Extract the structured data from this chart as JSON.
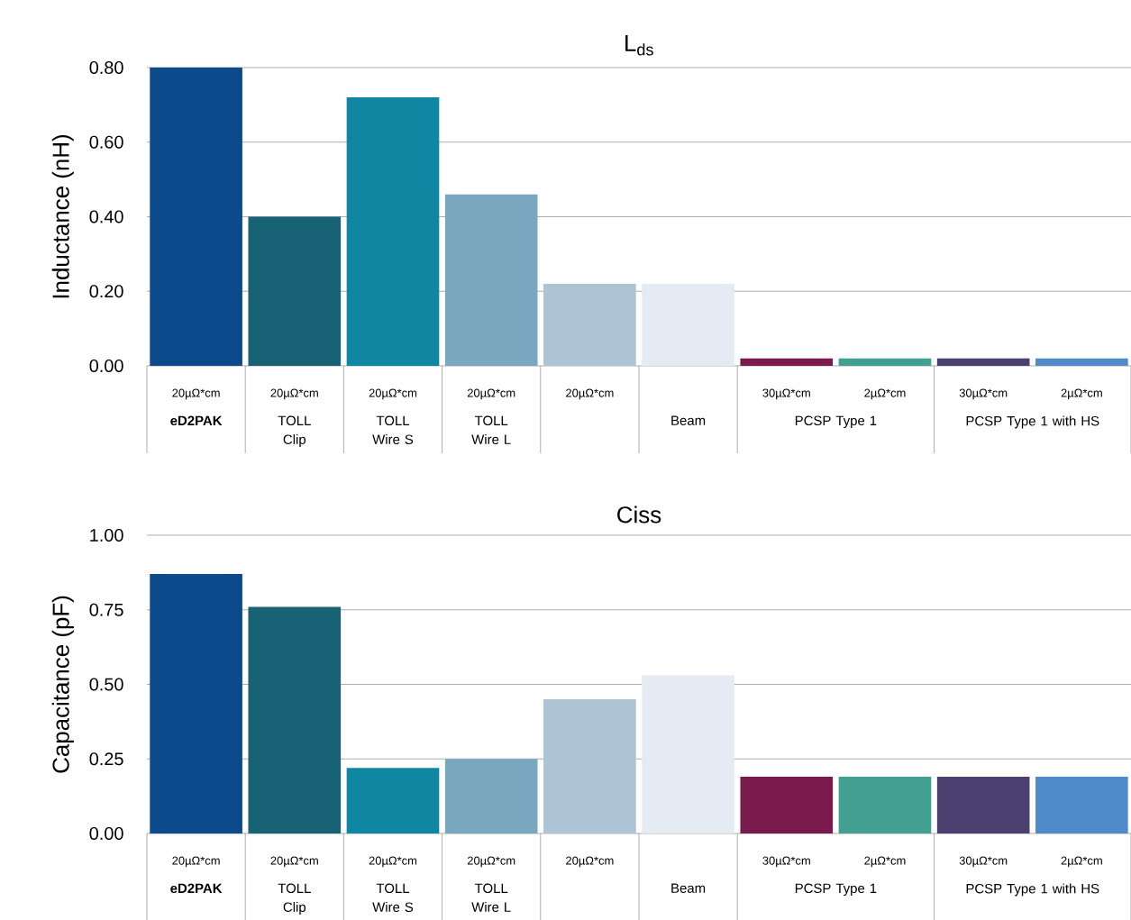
{
  "chart_data": [
    {
      "type": "bar",
      "title": "L$_{ds}$",
      "ylabel": "Inductance (nH)",
      "categories": [
        "20µΩ*cm",
        "20µΩ*cm",
        "20µΩ*cm",
        "20µΩ*cm",
        "20µΩ*cm",
        null,
        "30µΩ*cm",
        "2µΩ*cm",
        "30µΩ*cm",
        "2µΩ*cm"
      ],
      "values": [
        0.8,
        0.4,
        0.72,
        0.46,
        0.22,
        0.22,
        0.02,
        0.02,
        0.02,
        0.02
      ],
      "colors": [
        "#0d4a8c",
        "#176274",
        "#0f86a2",
        "#78a7bf",
        "#adc4d4",
        "#e4ebf2",
        "#7b1a4c",
        "#42a091",
        "#4a3f6f",
        "#4f8bcb"
      ],
      "ylim": [
        0,
        0.8
      ],
      "yticks": [
        {
          "value": 0,
          "label": "0.00"
        },
        {
          "value": 0.2,
          "label": "0.20"
        },
        {
          "value": 0.4,
          "label": "0.40"
        },
        {
          "value": 0.6,
          "label": "0.60"
        },
        {
          "value": 0.8,
          "label": "0.80"
        }
      ],
      "grid": "y",
      "annotations": [
        "**eD2PAK**",
        "TOLL Clip",
        "TOLL Wire S",
        "TOLL Wire L",
        "Beam",
        "PCSP Type 1",
        "PCSP Type 1 with HS"
      ]
    },
    {
      "type": "bar",
      "title": "Ciss",
      "ylabel": "Capacitance (pF)",
      "categories": [
        "20µΩ*cm",
        "20µΩ*cm",
        "20µΩ*cm",
        "20µΩ*cm",
        "20µΩ*cm",
        null,
        "30µΩ*cm",
        "2µΩ*cm",
        "30µΩ*cm",
        "2µΩ*cm"
      ],
      "values": [
        0.87,
        0.76,
        0.22,
        0.25,
        0.45,
        0.53,
        0.19,
        0.19,
        0.19,
        0.19
      ],
      "colors": [
        "#0d4a8c",
        "#176274",
        "#0f86a2",
        "#78a7bf",
        "#adc4d4",
        "#e4ebf2",
        "#7b1a4c",
        "#42a091",
        "#4a3f6f",
        "#4f8bcb"
      ],
      "ylim": [
        0,
        1
      ],
      "yticks": [
        {
          "value": 0,
          "label": "0.00"
        },
        {
          "value": 0.25,
          "label": "0.25"
        },
        {
          "value": 0.5,
          "label": "0.50"
        },
        {
          "value": 0.75,
          "label": "0.75"
        },
        {
          "value": 1,
          "label": "1.00"
        }
      ],
      "grid": "y",
      "annotations": [
        "**eD2PAK**",
        "TOLL Clip",
        "TOLL Wire S",
        "TOLL Wire L",
        "Beam",
        "PCSP Type 1",
        "PCSP Type 1 with HS"
      ]
    }
  ]
}
